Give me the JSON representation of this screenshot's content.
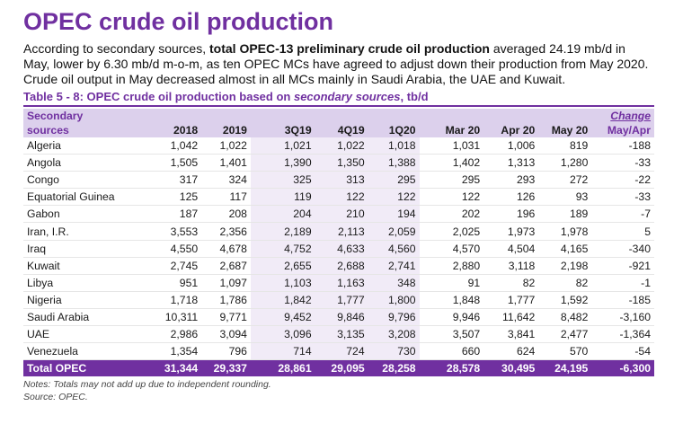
{
  "title": "OPEC crude oil production",
  "intro": {
    "part1": "According to secondary sources, ",
    "bold": "total OPEC-13 preliminary crude oil production",
    "part2": " averaged 24.19 mb/d in May, lower by 6.30 mb/d m-o-m, as ten OPEC MCs have agreed to adjust down their production from May 2020. Crude oil output in May decreased almost in all MCs mainly in Saudi Arabia, the UAE and Kuwait."
  },
  "table_title": {
    "prefix": "Table 5 - 8: OPEC crude oil production based on ",
    "italic": "secondary sources",
    "suffix": ", tb/d"
  },
  "header": {
    "first_line1": "Secondary",
    "first_line2": "sources",
    "columns": [
      "2018",
      "2019",
      "3Q19",
      "4Q19",
      "1Q20",
      "Mar 20",
      "Apr 20",
      "May 20"
    ],
    "change_line1": "Change",
    "change_line2": "May/Apr"
  },
  "rows": [
    {
      "name": "Algeria",
      "values": [
        "1,042",
        "1,022",
        "1,021",
        "1,022",
        "1,018",
        "1,031",
        "1,006",
        "819"
      ],
      "change": "-188"
    },
    {
      "name": "Angola",
      "values": [
        "1,505",
        "1,401",
        "1,390",
        "1,350",
        "1,388",
        "1,402",
        "1,313",
        "1,280"
      ],
      "change": "-33"
    },
    {
      "name": "Congo",
      "values": [
        "317",
        "324",
        "325",
        "313",
        "295",
        "295",
        "293",
        "272"
      ],
      "change": "-22"
    },
    {
      "name": "Equatorial Guinea",
      "values": [
        "125",
        "117",
        "119",
        "122",
        "122",
        "122",
        "126",
        "93"
      ],
      "change": "-33"
    },
    {
      "name": "Gabon",
      "values": [
        "187",
        "208",
        "204",
        "210",
        "194",
        "202",
        "196",
        "189"
      ],
      "change": "-7"
    },
    {
      "name": "Iran, I.R.",
      "values": [
        "3,553",
        "2,356",
        "2,189",
        "2,113",
        "2,059",
        "2,025",
        "1,973",
        "1,978"
      ],
      "change": "5"
    },
    {
      "name": "Iraq",
      "values": [
        "4,550",
        "4,678",
        "4,752",
        "4,633",
        "4,560",
        "4,570",
        "4,504",
        "4,165"
      ],
      "change": "-340"
    },
    {
      "name": "Kuwait",
      "values": [
        "2,745",
        "2,687",
        "2,655",
        "2,688",
        "2,741",
        "2,880",
        "3,118",
        "2,198"
      ],
      "change": "-921"
    },
    {
      "name": "Libya",
      "values": [
        "951",
        "1,097",
        "1,103",
        "1,163",
        "348",
        "91",
        "82",
        "82"
      ],
      "change": "-1"
    },
    {
      "name": "Nigeria",
      "values": [
        "1,718",
        "1,786",
        "1,842",
        "1,777",
        "1,800",
        "1,848",
        "1,777",
        "1,592"
      ],
      "change": "-185"
    },
    {
      "name": "Saudi Arabia",
      "values": [
        "10,311",
        "9,771",
        "9,452",
        "9,846",
        "9,796",
        "9,946",
        "11,642",
        "8,482"
      ],
      "change": "-3,160"
    },
    {
      "name": "UAE",
      "values": [
        "2,986",
        "3,094",
        "3,096",
        "3,135",
        "3,208",
        "3,507",
        "3,841",
        "2,477"
      ],
      "change": "-1,364"
    },
    {
      "name": "Venezuela",
      "values": [
        "1,354",
        "796",
        "714",
        "724",
        "730",
        "660",
        "624",
        "570"
      ],
      "change": "-54"
    }
  ],
  "total": {
    "name": "Total  OPEC",
    "values": [
      "31,344",
      "29,337",
      "28,861",
      "29,095",
      "28,258",
      "28,578",
      "30,495",
      "24,195"
    ],
    "change": "-6,300"
  },
  "notes": {
    "line1": "Notes: Totals may not add up due to independent rounding.",
    "line2": "Source: OPEC."
  },
  "colors": {
    "accent": "#7030a0",
    "header_bg": "#dcd0ec",
    "shade": "#f1ebf7"
  }
}
